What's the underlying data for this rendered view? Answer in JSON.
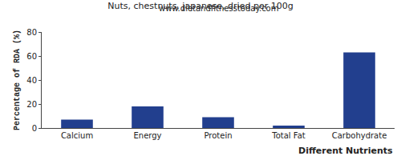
{
  "chart_data": {
    "type": "bar",
    "title": "Nuts, chestnuts, japanese, dried per 100g",
    "subtitle": "www.dietandfitnesstoday.com",
    "x_label": "Different Nutrients",
    "y_label": "Percentage of RDA (%)",
    "categories": [
      "Calcium",
      "Energy",
      "Protein",
      "Total Fat",
      "Carbohydrate"
    ],
    "values": [
      7,
      18,
      9,
      2,
      63
    ],
    "color": "#223f8e",
    "ylim": [
      0,
      80
    ],
    "yticks": [
      0,
      20,
      40,
      60,
      80
    ],
    "grid": false
  }
}
